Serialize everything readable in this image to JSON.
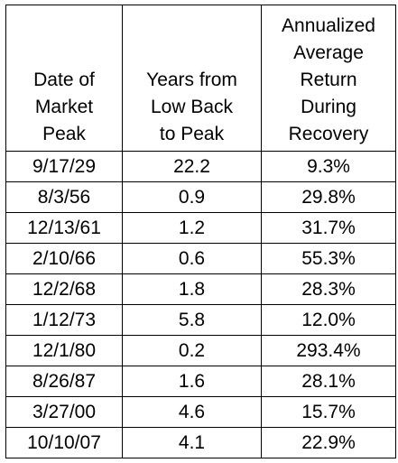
{
  "table": {
    "headers": [
      [
        "Date of",
        "Market",
        "Peak"
      ],
      [
        "Years from",
        "Low Back",
        "to Peak"
      ],
      [
        "Annualized",
        "Average",
        "Return",
        "During",
        "Recovery"
      ]
    ],
    "rows": [
      [
        "9/17/29",
        "22.2",
        "9.3%"
      ],
      [
        "8/3/56",
        "0.9",
        "29.8%"
      ],
      [
        "12/13/61",
        "1.2",
        "31.7%"
      ],
      [
        "2/10/66",
        "0.6",
        "55.3%"
      ],
      [
        "12/2/68",
        "1.8",
        "28.3%"
      ],
      [
        "1/12/73",
        "5.8",
        "12.0%"
      ],
      [
        "12/1/80",
        "0.2",
        "293.4%"
      ],
      [
        "8/26/87",
        "1.6",
        "28.1%"
      ],
      [
        "3/27/00",
        "4.6",
        "15.7%"
      ],
      [
        "10/10/07",
        "4.1",
        "22.9%"
      ]
    ]
  }
}
